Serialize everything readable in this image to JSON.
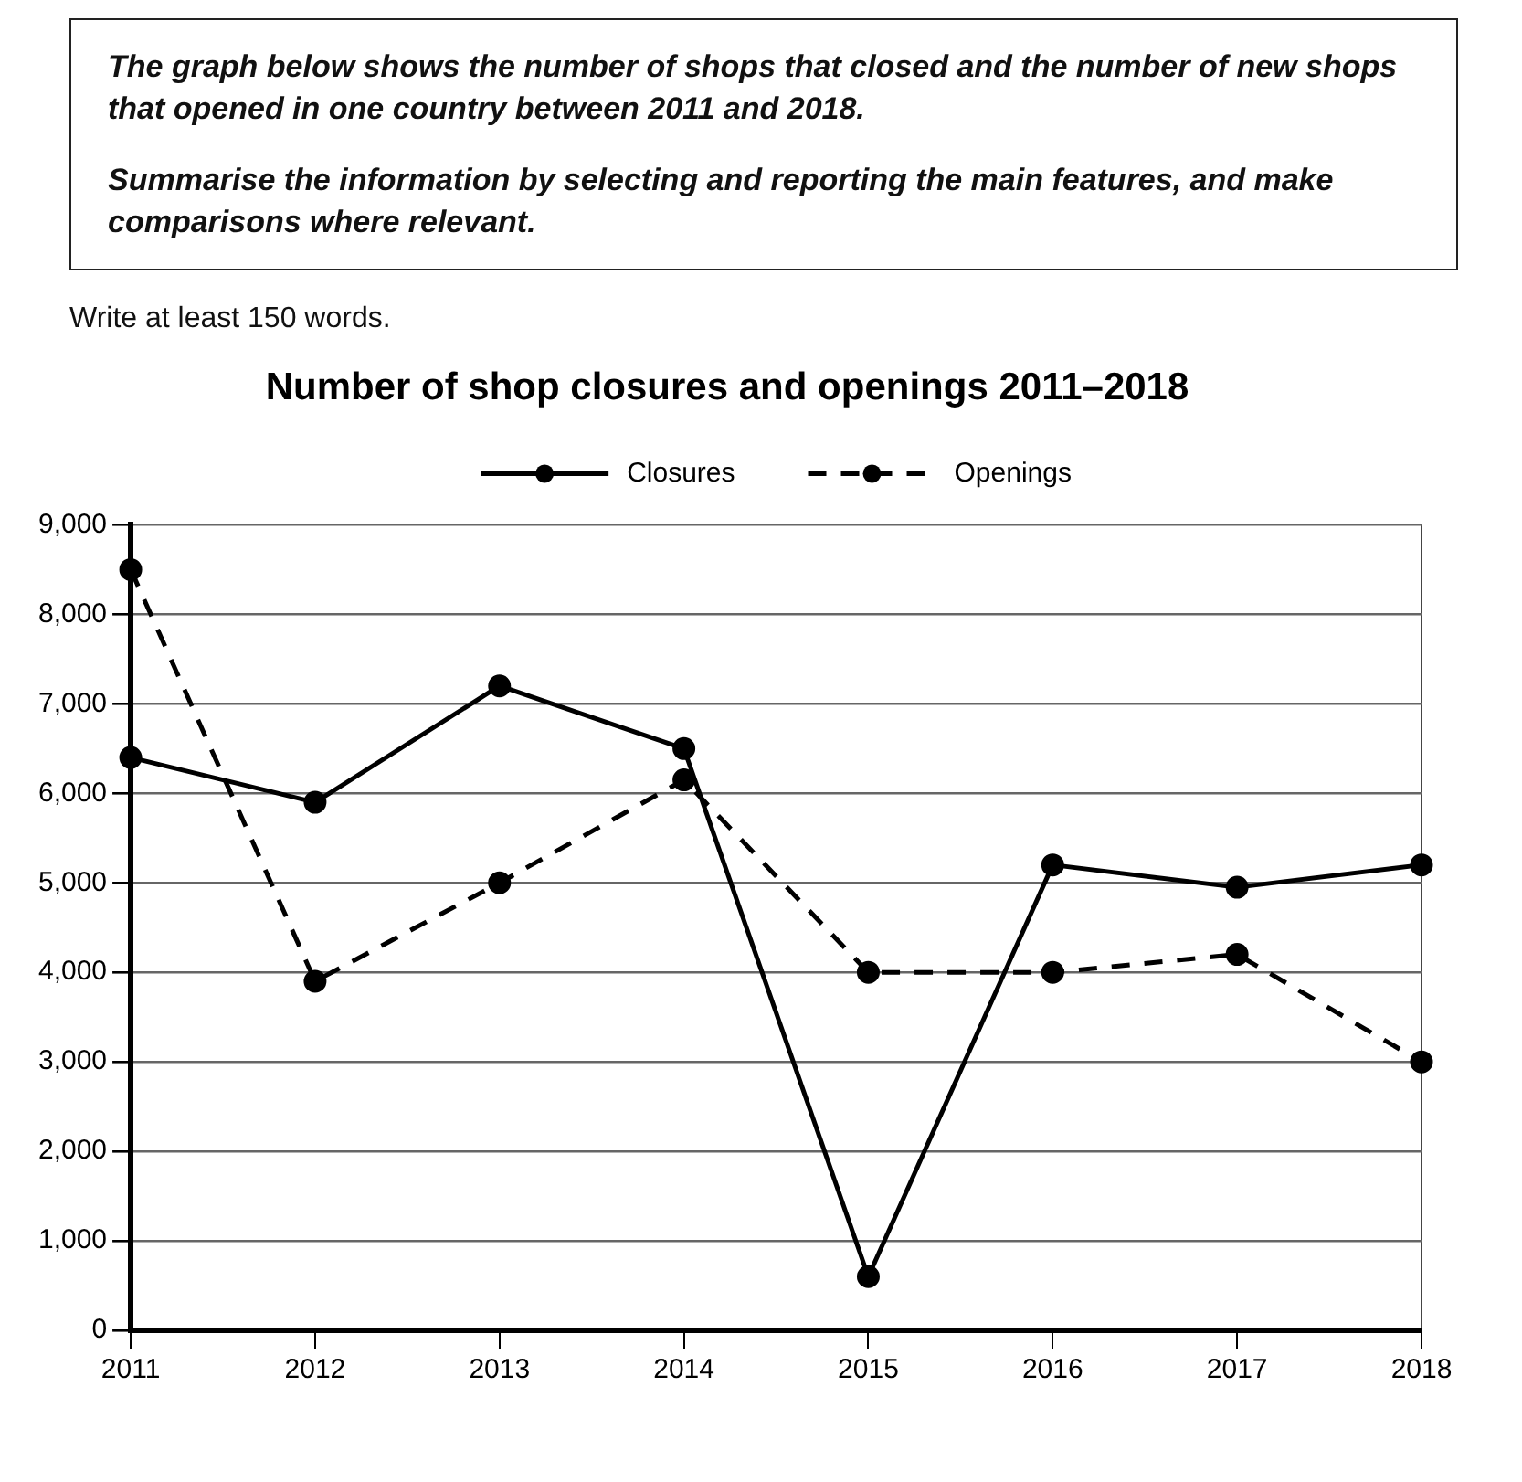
{
  "chart_data": {
    "type": "line",
    "title": "Number of shop closures and openings 2011–2018",
    "annotations": [
      "The graph below shows the number of shops that closed and the number of new shops that opened in one country between 2011 and 2018.",
      "Summarise the information by selecting and reporting the main features, and make comparisons where relevant.",
      "Write at least 150 words."
    ],
    "categories": [
      "2011",
      "2012",
      "2013",
      "2014",
      "2015",
      "2016",
      "2017",
      "2018"
    ],
    "series": [
      {
        "name": "Closures",
        "color": "#000000",
        "line_style": "solid",
        "values": [
          6400,
          5900,
          7200,
          6500,
          600,
          5200,
          4950,
          5200
        ]
      },
      {
        "name": "Openings",
        "color": "#000000",
        "line_style": "dashed",
        "values": [
          8500,
          3900,
          5000,
          6150,
          4000,
          4000,
          4200,
          3000
        ]
      }
    ],
    "ylim": [
      0,
      9000
    ],
    "yticks": [
      0,
      {
        "value": 1000,
        "label": "1,000"
      },
      {
        "value": 2000,
        "label": "2,000"
      },
      {
        "value": 3000,
        "label": "3,000"
      },
      {
        "value": 4000,
        "label": "4,000"
      },
      {
        "value": 5000,
        "label": "5,000"
      },
      {
        "value": 6000,
        "label": "6,000"
      },
      {
        "value": 7000,
        "label": "7,000"
      },
      {
        "value": 8000,
        "label": "8,000"
      },
      {
        "value": 9000,
        "label": "9,000"
      }
    ],
    "grid": "y",
    "legend": "top",
    "marker": "circle"
  }
}
